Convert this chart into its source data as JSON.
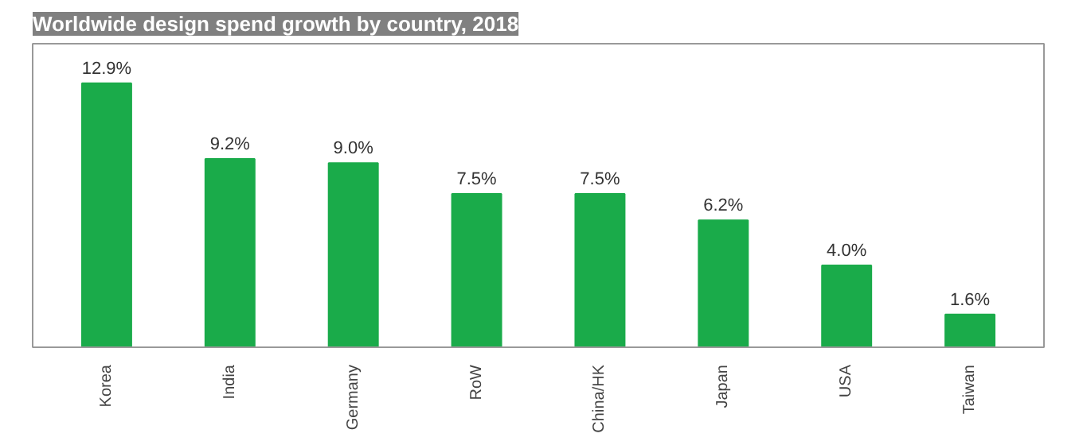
{
  "chart_data": {
    "type": "bar",
    "title": "Worldwide design spend growth by country, 2018",
    "categories": [
      "Korea",
      "India",
      "Germany",
      "RoW",
      "China/HK",
      "Japan",
      "USA",
      "Taiwan"
    ],
    "values": [
      12.9,
      9.2,
      9.0,
      7.5,
      7.5,
      6.2,
      4.0,
      1.6
    ],
    "value_labels": [
      "12.9%",
      "9.2%",
      "9.0%",
      "7.5%",
      "7.5%",
      "6.2%",
      "4.0%",
      "1.6%"
    ],
    "color": "#1aab4a",
    "grid": false
  }
}
